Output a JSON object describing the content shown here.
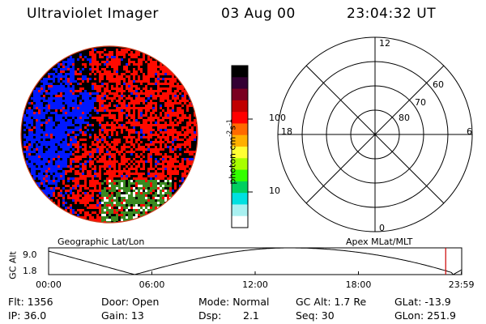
{
  "header": {
    "instrument": "Ultraviolet Imager",
    "date": "03 Aug 00",
    "time": "23:04:32 UT"
  },
  "colorbar": {
    "unit": "photon cm",
    "unit_sup1": "-2",
    "unit_mid": "s",
    "unit_sup2": "-1",
    "ticks": [
      {
        "label": "100",
        "value": 100
      },
      {
        "label": "10",
        "value": 10
      }
    ],
    "colors": [
      "#000000",
      "#330033",
      "#7a0020",
      "#c00000",
      "#ff0000",
      "#ff6a00",
      "#ffb000",
      "#ffff33",
      "#a8ff00",
      "#33ff00",
      "#00d060",
      "#00e0e0",
      "#a8f0f0",
      "#ffffff"
    ]
  },
  "polar_plot": {
    "rings": [
      {
        "label": "80",
        "lat": 80
      },
      {
        "label": "70",
        "lat": 70
      },
      {
        "label": "60",
        "lat": 60
      }
    ],
    "mlt_labels": [
      {
        "label": "12",
        "mlt": 12
      },
      {
        "label": "18",
        "mlt": 18
      },
      {
        "label": "6",
        "mlt": 6
      },
      {
        "label": "0",
        "mlt": 0
      }
    ]
  },
  "image_panel": {
    "colors": {
      "background": "#000000",
      "blue": "#0018ff",
      "red": "#ff0a00",
      "green": "#3a8a20",
      "white": "#ffffff",
      "limb": "#d04020"
    }
  },
  "orbit_plot": {
    "left_label": "Geographic Lat/Lon",
    "right_label": "Apex MLat/MLT",
    "y_axis_label": "GC Alt",
    "y_ticks": [
      {
        "label": "9.0",
        "value": 9.0
      },
      {
        "label": "1.8",
        "value": 1.8
      }
    ],
    "x_ticks": [
      {
        "label": "00:00",
        "hour": 0
      },
      {
        "label": "06:00",
        "hour": 6
      },
      {
        "label": "12:00",
        "hour": 12
      },
      {
        "label": "18:00",
        "hour": 18
      },
      {
        "label": "23:59",
        "hour": 23.983
      }
    ],
    "current_hour": 23.07,
    "marker_color": "#cc0000"
  },
  "info": {
    "flt": "Flt: 1356",
    "ip": "IP: 36.0",
    "door": "Door: Open",
    "gain": "Gain: 13",
    "mode": "Mode: Normal",
    "dsp_label": "Dsp:",
    "dsp_value": "2.1",
    "gc_alt": "GC Alt: 1.7 Re",
    "seq": "Seq: 30",
    "glat": "GLat: -13.9",
    "glon": "GLon: 251.9"
  }
}
